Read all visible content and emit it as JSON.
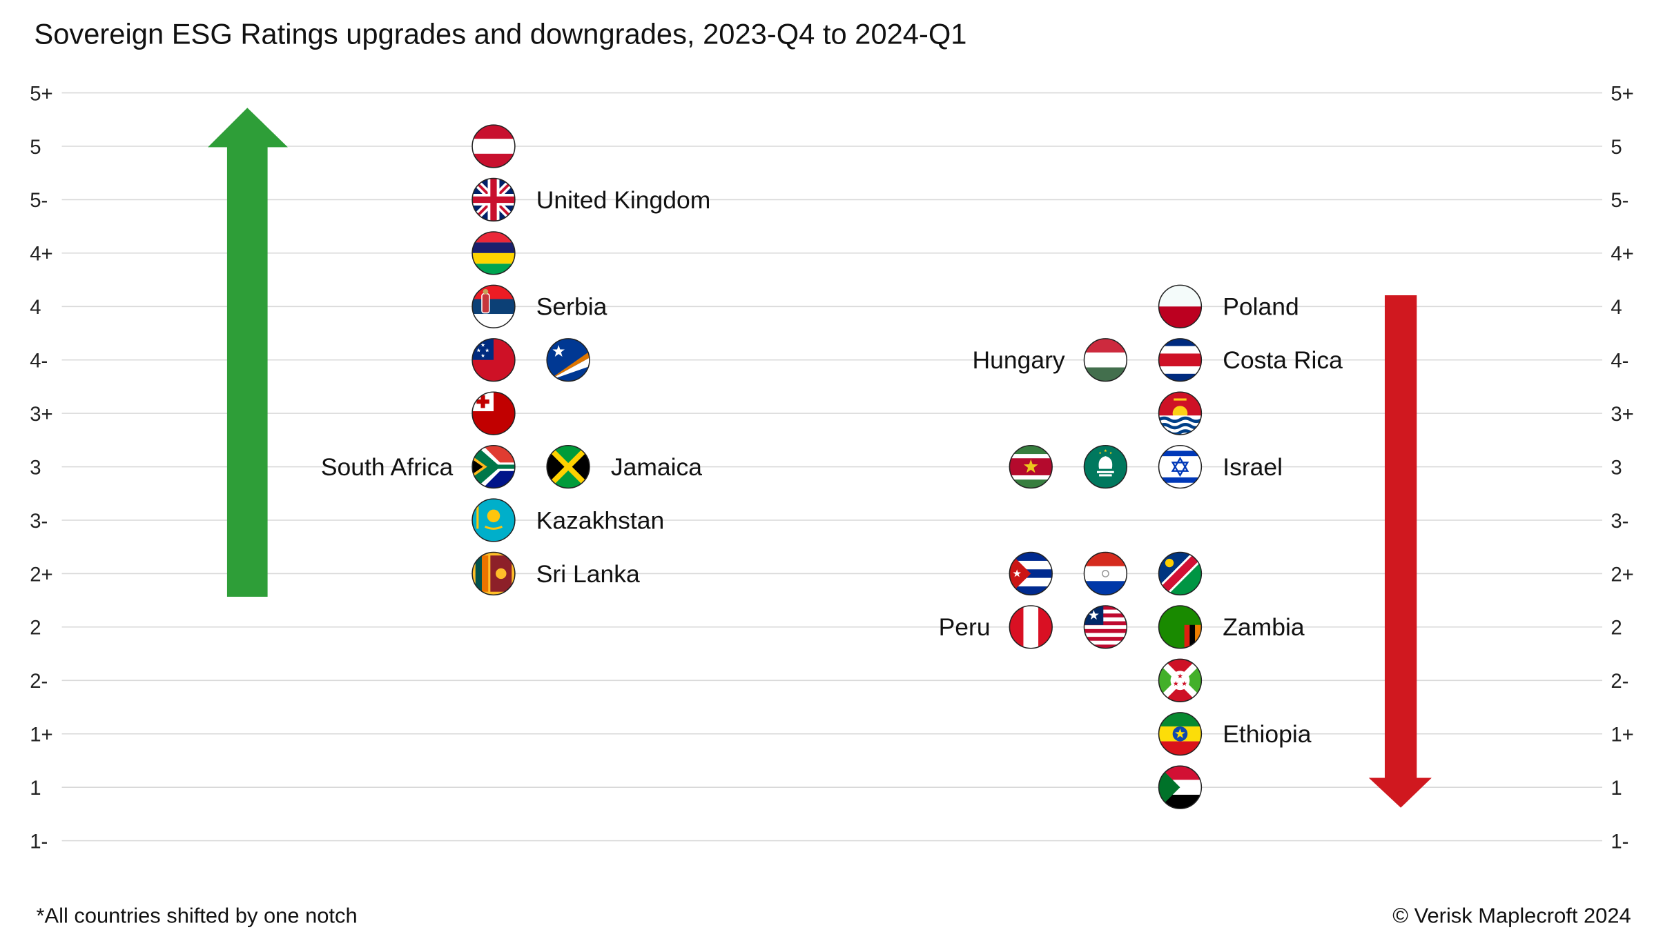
{
  "chart_data": {
    "type": "scatter",
    "title": "Sovereign ESG Ratings upgrades and downgrades, 2023-Q4 to 2024-Q1",
    "footnote": "*All countries shifted by one notch",
    "copyright": "© Verisk Maplecroft 2024",
    "y_ticks": [
      "5+",
      "5",
      "5-",
      "4+",
      "4",
      "4-",
      "3+",
      "3",
      "3-",
      "2+",
      "2",
      "2-",
      "1+",
      "1",
      "1-"
    ],
    "grid": true,
    "colors": {
      "upgrade_arrow": "#2e9e38",
      "downgrade_arrow": "#d0181f",
      "grid": "#d9d9d9"
    },
    "upgrades": [
      {
        "flag": "austria",
        "rating": "5",
        "col": 0,
        "label": ""
      },
      {
        "flag": "united-kingdom",
        "rating": "5-",
        "col": 0,
        "label": "United Kingdom"
      },
      {
        "flag": "mauritius",
        "rating": "4+",
        "col": 0,
        "label": ""
      },
      {
        "flag": "serbia",
        "rating": "4",
        "col": 0,
        "label": "Serbia"
      },
      {
        "flag": "samoa",
        "rating": "4-",
        "col": 0,
        "label": ""
      },
      {
        "flag": "marshall-islands",
        "rating": "4-",
        "col": 1,
        "label": ""
      },
      {
        "flag": "tonga",
        "rating": "3+",
        "col": 0,
        "label": ""
      },
      {
        "flag": "south-africa",
        "rating": "3",
        "col": 0,
        "label": "South Africa",
        "label_side": "left"
      },
      {
        "flag": "jamaica",
        "rating": "3",
        "col": 1,
        "label": "Jamaica"
      },
      {
        "flag": "kazakhstan",
        "rating": "3-",
        "col": 0,
        "label": "Kazakhstan"
      },
      {
        "flag": "sri-lanka",
        "rating": "2+",
        "col": 0,
        "label": "Sri Lanka"
      }
    ],
    "downgrades": [
      {
        "flag": "poland",
        "rating": "4",
        "col": 2,
        "label": "Poland"
      },
      {
        "flag": "hungary",
        "rating": "4-",
        "col": 1,
        "label": "Hungary",
        "label_side": "left"
      },
      {
        "flag": "costa-rica",
        "rating": "4-",
        "col": 2,
        "label": "Costa Rica"
      },
      {
        "flag": "kiribati",
        "rating": "3+",
        "col": 2,
        "label": ""
      },
      {
        "flag": "suriname",
        "rating": "3",
        "col": 0,
        "label": ""
      },
      {
        "flag": "macau",
        "rating": "3",
        "col": 1,
        "label": ""
      },
      {
        "flag": "israel",
        "rating": "3",
        "col": 2,
        "label": "Israel"
      },
      {
        "flag": "cuba",
        "rating": "2+",
        "col": 0,
        "label": ""
      },
      {
        "flag": "paraguay",
        "rating": "2+",
        "col": 1,
        "label": ""
      },
      {
        "flag": "namibia",
        "rating": "2+",
        "col": 2,
        "label": ""
      },
      {
        "flag": "peru",
        "rating": "2",
        "col": 0,
        "label": "Peru",
        "label_side": "left"
      },
      {
        "flag": "liberia",
        "rating": "2",
        "col": 1,
        "label": ""
      },
      {
        "flag": "zambia",
        "rating": "2",
        "col": 2,
        "label": "Zambia"
      },
      {
        "flag": "burundi",
        "rating": "2-",
        "col": 2,
        "label": ""
      },
      {
        "flag": "ethiopia",
        "rating": "1+",
        "col": 2,
        "label": "Ethiopia"
      },
      {
        "flag": "sudan",
        "rating": "1",
        "col": 2,
        "label": ""
      }
    ]
  }
}
